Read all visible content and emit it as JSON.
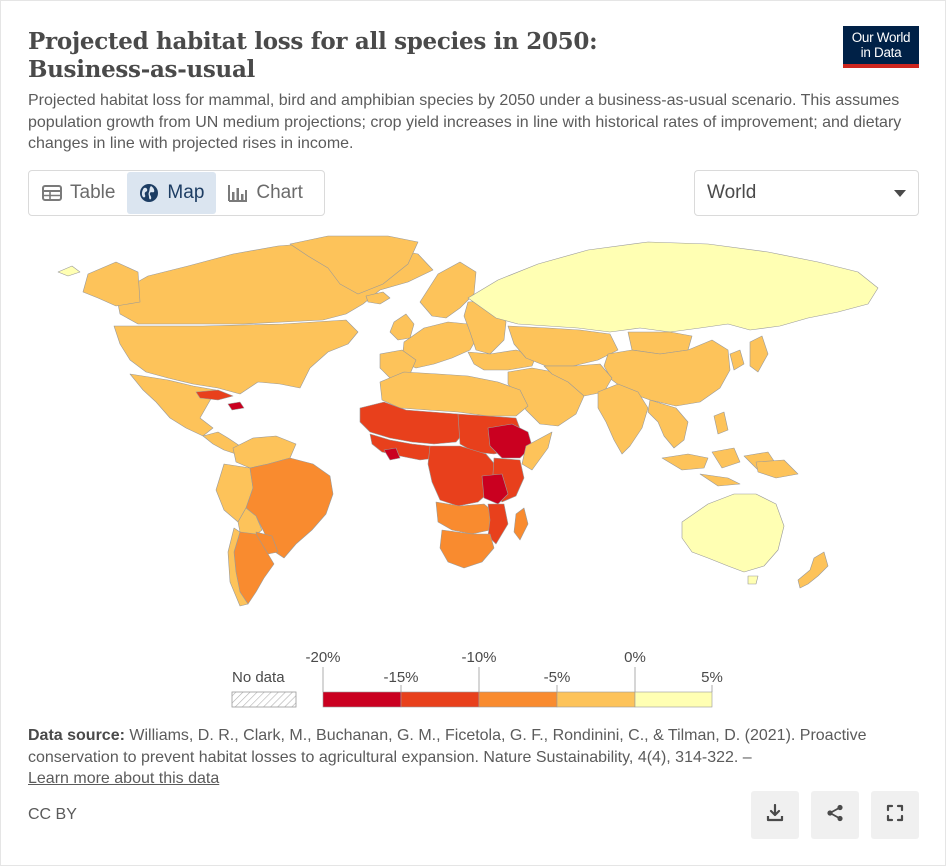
{
  "header": {
    "title_line1": "Projected habitat loss for all species in 2050:",
    "title_line2": "Business-as-usual",
    "subtitle": "Projected habitat loss for mammal, bird and amphibian species by 2050 under a business-as-usual scenario. This assumes population growth from UN medium projections; crop yield increases in line with historical rates of improvement; and dietary changes in line with projected rises in income.",
    "logo_line1": "Our World",
    "logo_line2": "in Data"
  },
  "tabs": [
    {
      "label": "Table",
      "icon": "table-icon"
    },
    {
      "label": "Map",
      "icon": "globe-icon",
      "active": true
    },
    {
      "label": "Chart",
      "icon": "bar-chart-icon"
    }
  ],
  "region_select": {
    "value": "World"
  },
  "legend": {
    "no_data_label": "No data",
    "bins_upper": [
      "-20%",
      "-10%",
      "0%"
    ],
    "bins_lower": [
      "-15%",
      "-5%",
      "5%"
    ],
    "colors": [
      "#ca0020",
      "#e8401c",
      "#f98b2f",
      "#fdc35a",
      "#ffffb3"
    ],
    "no_data_color": "#ffffff"
  },
  "footer": {
    "source_label": "Data source:",
    "source_text": " Williams, D. R., Clark, M., Buchanan, G. M., Ficetola, G. F., Rondinini, C., & Tilman, D. (2021). Proactive conservation to prevent habitat losses to agricultural expansion. Nature Sustainability, 4(4), 314-322. –",
    "learn_more": "Learn more about this data",
    "license": "CC BY"
  },
  "actions": [
    {
      "name": "download-button",
      "icon": "download-icon"
    },
    {
      "name": "share-button",
      "icon": "share-icon"
    },
    {
      "name": "fullscreen-button",
      "icon": "fullscreen-icon"
    }
  ]
}
